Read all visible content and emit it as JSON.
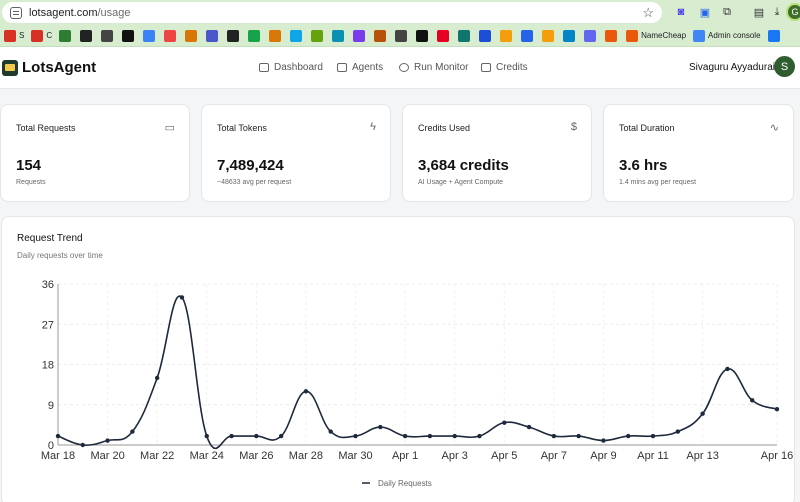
{
  "browser": {
    "url_host": "lotsagent.com",
    "url_path": "/usage",
    "profile_initial": "G",
    "bookmarks": [
      {
        "icon": "gmail-icon",
        "label": "S",
        "color": "#d93025"
      },
      {
        "icon": "gmail-icon",
        "label": "C",
        "color": "#d93025"
      },
      {
        "icon": "globe-icon",
        "label": "",
        "color": "#2e7d32"
      },
      {
        "icon": "terminal-icon",
        "label": "",
        "color": "#222"
      },
      {
        "icon": "openai-icon",
        "label": "",
        "color": "#444"
      },
      {
        "icon": "app-icon",
        "label": "",
        "color": "#111"
      },
      {
        "icon": "bird-icon",
        "label": "",
        "color": "#3b82f6"
      },
      {
        "icon": "tool-icon",
        "label": "",
        "color": "#e44"
      },
      {
        "icon": "spark-icon",
        "label": "",
        "color": "#d97706"
      },
      {
        "icon": "letter-icon",
        "label": "",
        "color": "#4a56c9"
      },
      {
        "icon": "letter-icon",
        "label": "",
        "color": "#222"
      },
      {
        "icon": "letter-icon",
        "label": "",
        "color": "#16a34a"
      },
      {
        "icon": "letter-icon",
        "label": "",
        "color": "#d97706"
      },
      {
        "icon": "letter-icon",
        "label": "",
        "color": "#0ea5e9"
      },
      {
        "icon": "letter-icon",
        "label": "",
        "color": "#65a30d"
      },
      {
        "icon": "letter-icon",
        "label": "",
        "color": "#0891b2"
      },
      {
        "icon": "letter-icon",
        "label": "",
        "color": "#7c3aed"
      },
      {
        "icon": "letter-icon",
        "label": "",
        "color": "#b45309"
      },
      {
        "icon": "circle-icon",
        "label": "",
        "color": "#444"
      },
      {
        "icon": "x-icon",
        "label": "",
        "color": "#111"
      },
      {
        "icon": "pinterest-icon",
        "label": "",
        "color": "#e60023"
      },
      {
        "icon": "letter-icon",
        "label": "",
        "color": "#0f766e"
      },
      {
        "icon": "meta-icon",
        "label": "",
        "color": "#1d4ed8"
      },
      {
        "icon": "drive-icon",
        "label": "",
        "color": "#f59e0b"
      },
      {
        "icon": "letter-icon",
        "label": "",
        "color": "#2563eb"
      },
      {
        "icon": "analytics-icon",
        "label": "",
        "color": "#f59e0b"
      },
      {
        "icon": "letter-icon",
        "label": "",
        "color": "#0284c7"
      },
      {
        "icon": "letter-icon",
        "label": "",
        "color": "#6366f1"
      },
      {
        "icon": "letter-icon",
        "label": "",
        "color": "#ea580c"
      },
      {
        "icon": "namecheap-icon",
        "label": "NameCheap",
        "color": "#ea580c"
      },
      {
        "icon": "google-icon",
        "label": "Admin console",
        "color": "#4285f4"
      },
      {
        "icon": "facebook-icon",
        "label": "",
        "color": "#1877f2"
      }
    ]
  },
  "app": {
    "brand": "LotsAgent",
    "nav": [
      {
        "label": "Dashboard",
        "icon": "grid-icon"
      },
      {
        "label": "Agents",
        "icon": "bot-icon"
      },
      {
        "label": "Run Monitor",
        "icon": "radio-icon"
      },
      {
        "label": "Credits",
        "icon": "card-icon"
      }
    ],
    "user": {
      "name": "Sivaguru Ayyadurai",
      "initial": "S"
    }
  },
  "stats": [
    {
      "title": "Total Requests",
      "value": "154",
      "sub": "Requests",
      "icon": "message-icon",
      "glyph": "▭"
    },
    {
      "title": "Total Tokens",
      "value": "7,489,424",
      "sub": "~48633 avg per request",
      "icon": "zap-icon",
      "glyph": "ϟ"
    },
    {
      "title": "Credits Used",
      "value": "3,684 credits",
      "sub": "AI Usage + Agent Compute",
      "icon": "dollar-icon",
      "glyph": "$"
    },
    {
      "title": "Total Duration",
      "value": "3.6 hrs",
      "sub": "1.4 mins avg per request",
      "icon": "activity-icon",
      "glyph": "∿"
    }
  ],
  "trend": {
    "title": "Request Trend",
    "subtitle": "Daily requests over time"
  },
  "chart_data": {
    "type": "line",
    "x": [
      "Mar 18",
      "Mar 19",
      "Mar 20",
      "Mar 21",
      "Mar 22",
      "Mar 23",
      "Mar 24",
      "Mar 25",
      "Mar 26",
      "Mar 27",
      "Mar 28",
      "Mar 29",
      "Mar 30",
      "Mar 31",
      "Apr 1",
      "Apr 2",
      "Apr 3",
      "Apr 4",
      "Apr 5",
      "Apr 6",
      "Apr 7",
      "Apr 8",
      "Apr 9",
      "Apr 10",
      "Apr 11",
      "Apr 12",
      "Apr 13",
      "Apr 14",
      "Apr 15",
      "Apr 16"
    ],
    "xticks": [
      "Mar 18",
      "Mar 20",
      "Mar 22",
      "Mar 24",
      "Mar 26",
      "Mar 28",
      "Mar 30",
      "Apr 1",
      "Apr 3",
      "Apr 5",
      "Apr 7",
      "Apr 9",
      "Apr 11",
      "Apr 13",
      "Apr 16"
    ],
    "series": [
      {
        "name": "Daily Requests",
        "values": [
          2,
          0,
          1,
          3,
          15,
          33,
          2,
          2,
          2,
          2,
          12,
          3,
          2,
          4,
          2,
          2,
          2,
          2,
          5,
          4,
          2,
          2,
          1,
          2,
          2,
          3,
          7,
          17,
          10,
          8
        ]
      }
    ],
    "yticks": [
      0,
      9,
      18,
      27,
      36
    ],
    "ylim": [
      0,
      36
    ],
    "grid": true,
    "legend": "bottom-center",
    "color": "#1e293b"
  }
}
